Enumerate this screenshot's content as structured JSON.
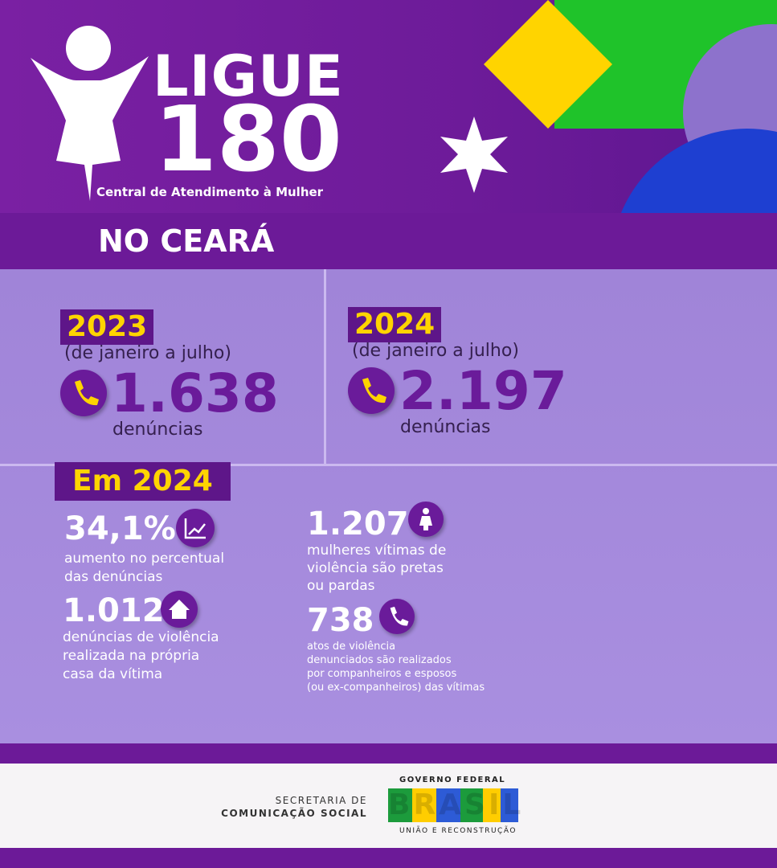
{
  "header": {
    "logo_line1": "LIGUE",
    "logo_line2": "180",
    "logo_subtitle": "Central de Atendimento à Mulher"
  },
  "region": "NO CEARÁ",
  "periods": [
    {
      "year": "2023",
      "range": "(de janeiro a julho)",
      "count": "1.638",
      "unit": "denúncias"
    },
    {
      "year": "2024",
      "range": "(de janeiro a julho)",
      "count": "2.197",
      "unit": "denúncias"
    }
  ],
  "highlights": {
    "title": "Em 2024",
    "items": [
      {
        "value": "34,1%",
        "lines": [
          "aumento no percentual",
          "das denúncias"
        ]
      },
      {
        "value": "1.012",
        "lines": [
          "denúncias de violência",
          "realizada na própria",
          "casa da vítima"
        ]
      },
      {
        "value": "1.207",
        "lines": [
          "mulheres vítimas de",
          "violência são pretas",
          "ou pardas"
        ]
      },
      {
        "value": "738",
        "lines": [
          "atos de violência",
          "denunciados são realizados",
          "por companheiros e esposos",
          "(ou ex-companheiros) das vítimas"
        ]
      }
    ]
  },
  "footer": {
    "secretaria": [
      "SECRETARIA DE",
      "COMUNICAÇÃO SOCIAL"
    ],
    "government": "GOVERNO FEDERAL",
    "brand": "BRASIL",
    "slogan": "UNIÃO E RECONSTRUÇÃO"
  }
}
